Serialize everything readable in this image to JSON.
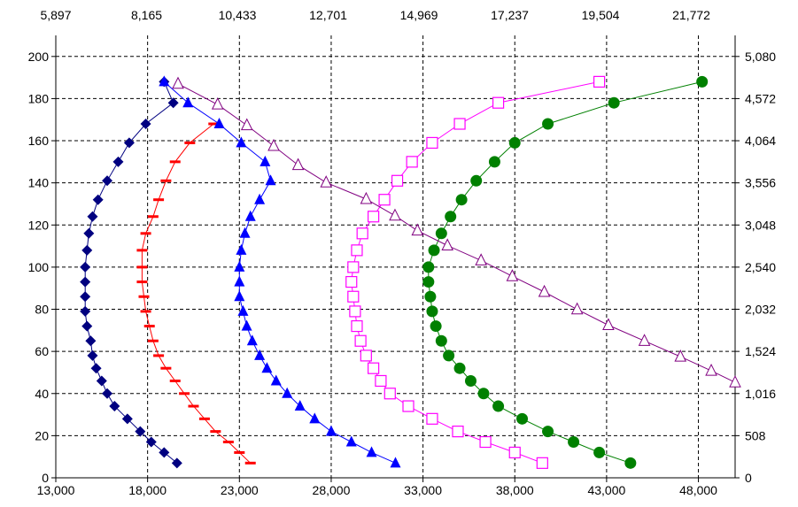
{
  "chart_data": {
    "type": "scatter",
    "bottom_axis": {
      "range": [
        13000,
        50000
      ],
      "ticks": [
        13000,
        18000,
        23000,
        28000,
        33000,
        38000,
        43000,
        48000
      ],
      "tick_labels": [
        "13,000",
        "18,000",
        "23,000",
        "28,000",
        "33,000",
        "38,000",
        "43,000",
        "48,000"
      ]
    },
    "top_axis": {
      "range": [
        5897,
        22866
      ],
      "ticks": [
        5897,
        8165,
        10433,
        12701,
        14969,
        17237,
        19504,
        21772
      ],
      "tick_labels": [
        "5,897",
        "8,165",
        "10,433",
        "12,701",
        "14,969",
        "17,237",
        "19,504",
        "21,772"
      ]
    },
    "left_axis": {
      "range": [
        0,
        210
      ],
      "ticks": [
        0,
        20,
        40,
        60,
        80,
        100,
        120,
        140,
        160,
        180,
        200
      ],
      "tick_labels": [
        "0",
        "20",
        "40",
        "60",
        "80",
        "100",
        "120",
        "140",
        "160",
        "180",
        "200"
      ]
    },
    "right_axis": {
      "range": [
        0,
        5334
      ],
      "ticks": [
        0,
        508,
        1016,
        1524,
        2032,
        2540,
        3048,
        3556,
        4064,
        4572,
        5080
      ],
      "tick_labels": [
        "0",
        "508",
        "1,016",
        "1,524",
        "2,032",
        "2,540",
        "3,048",
        "3,556",
        "4,064",
        "4,572",
        "5,080"
      ]
    },
    "grid": "dashed",
    "legend": "none",
    "series": [
      {
        "marker": "diamond",
        "color": "#000080",
        "axes": "bottom-left",
        "points": [
          [
            19600,
            7
          ],
          [
            18900,
            12
          ],
          [
            18200,
            17
          ],
          [
            17600,
            22
          ],
          [
            16900,
            28
          ],
          [
            16200,
            34
          ],
          [
            15800,
            40
          ],
          [
            15500,
            46
          ],
          [
            15200,
            52
          ],
          [
            15000,
            58
          ],
          [
            14900,
            65
          ],
          [
            14700,
            72
          ],
          [
            14600,
            79
          ],
          [
            14600,
            86
          ],
          [
            14600,
            93
          ],
          [
            14600,
            100
          ],
          [
            14700,
            108
          ],
          [
            14800,
            116
          ],
          [
            15000,
            124
          ],
          [
            15300,
            132
          ],
          [
            15800,
            141
          ],
          [
            16400,
            150
          ],
          [
            17000,
            159
          ],
          [
            17900,
            168
          ],
          [
            19400,
            178
          ],
          [
            18900,
            188
          ]
        ]
      },
      {
        "marker": "dash",
        "color": "#ff0000",
        "axes": "bottom-left",
        "points": [
          [
            23600,
            7
          ],
          [
            23000,
            12
          ],
          [
            22400,
            17
          ],
          [
            21700,
            22
          ],
          [
            21100,
            28
          ],
          [
            20500,
            34
          ],
          [
            20000,
            40
          ],
          [
            19500,
            46
          ],
          [
            19000,
            52
          ],
          [
            18600,
            58
          ],
          [
            18300,
            65
          ],
          [
            18100,
            72
          ],
          [
            17900,
            79
          ],
          [
            17800,
            86
          ],
          [
            17700,
            93
          ],
          [
            17700,
            100
          ],
          [
            17700,
            108
          ],
          [
            17900,
            116
          ],
          [
            18300,
            124
          ],
          [
            18600,
            132
          ],
          [
            19000,
            141
          ],
          [
            19500,
            150
          ],
          [
            20300,
            159
          ],
          [
            21600,
            168
          ]
        ]
      },
      {
        "marker": "triangle",
        "color": "#0000ff",
        "axes": "bottom-left",
        "points": [
          [
            31500,
            7
          ],
          [
            30200,
            12
          ],
          [
            29100,
            17
          ],
          [
            28000,
            22
          ],
          [
            27100,
            28
          ],
          [
            26300,
            34
          ],
          [
            25600,
            40
          ],
          [
            25000,
            46
          ],
          [
            24500,
            52
          ],
          [
            24100,
            58
          ],
          [
            23700,
            65
          ],
          [
            23400,
            72
          ],
          [
            23200,
            79
          ],
          [
            23000,
            86
          ],
          [
            23000,
            93
          ],
          [
            23000,
            100
          ],
          [
            23100,
            108
          ],
          [
            23300,
            116
          ],
          [
            23600,
            124
          ],
          [
            24100,
            132
          ],
          [
            24700,
            141
          ],
          [
            24400,
            150
          ],
          [
            23100,
            159
          ],
          [
            21900,
            168
          ],
          [
            20200,
            178
          ],
          [
            18900,
            188
          ]
        ]
      },
      {
        "marker": "open-square",
        "color": "#ff00ff",
        "axes": "bottom-left",
        "points": [
          [
            39500,
            7
          ],
          [
            38000,
            12
          ],
          [
            36400,
            17
          ],
          [
            34900,
            22
          ],
          [
            33500,
            28
          ],
          [
            32200,
            34
          ],
          [
            31200,
            40
          ],
          [
            30700,
            46
          ],
          [
            30300,
            52
          ],
          [
            29900,
            58
          ],
          [
            29600,
            65
          ],
          [
            29400,
            72
          ],
          [
            29300,
            79
          ],
          [
            29200,
            86
          ],
          [
            29100,
            93
          ],
          [
            29200,
            100
          ],
          [
            29400,
            108
          ],
          [
            29700,
            116
          ],
          [
            30300,
            124
          ],
          [
            30900,
            132
          ],
          [
            31600,
            141
          ],
          [
            32400,
            150
          ],
          [
            33500,
            159
          ],
          [
            35000,
            168
          ],
          [
            37100,
            178
          ],
          [
            42600,
            188
          ]
        ]
      },
      {
        "marker": "circle",
        "color": "#008000",
        "axes": "bottom-left",
        "points": [
          [
            44300,
            7
          ],
          [
            42600,
            12
          ],
          [
            41200,
            17
          ],
          [
            39800,
            22
          ],
          [
            38400,
            28
          ],
          [
            37100,
            34
          ],
          [
            36300,
            40
          ],
          [
            35600,
            46
          ],
          [
            35000,
            52
          ],
          [
            34400,
            58
          ],
          [
            34000,
            65
          ],
          [
            33700,
            72
          ],
          [
            33500,
            79
          ],
          [
            33400,
            86
          ],
          [
            33300,
            93
          ],
          [
            33300,
            100
          ],
          [
            33600,
            108
          ],
          [
            34000,
            116
          ],
          [
            34500,
            124
          ],
          [
            35100,
            132
          ],
          [
            35900,
            141
          ],
          [
            36900,
            150
          ],
          [
            38000,
            159
          ],
          [
            39800,
            168
          ],
          [
            43400,
            178
          ],
          [
            48200,
            188
          ]
        ]
      },
      {
        "marker": "open-triangle",
        "color": "#800080",
        "axes": "top-right",
        "points": [
          [
            22866,
            1150
          ],
          [
            22270,
            1290
          ],
          [
            21500,
            1460
          ],
          [
            20600,
            1650
          ],
          [
            19700,
            1840
          ],
          [
            18920,
            2030
          ],
          [
            18100,
            2240
          ],
          [
            17300,
            2430
          ],
          [
            16520,
            2620
          ],
          [
            15680,
            2800
          ],
          [
            14930,
            2980
          ],
          [
            14370,
            3160
          ],
          [
            13650,
            3360
          ],
          [
            12650,
            3560
          ],
          [
            11950,
            3770
          ],
          [
            11340,
            4000
          ],
          [
            10670,
            4250
          ],
          [
            9940,
            4500
          ],
          [
            8950,
            4750
          ]
        ]
      }
    ]
  }
}
